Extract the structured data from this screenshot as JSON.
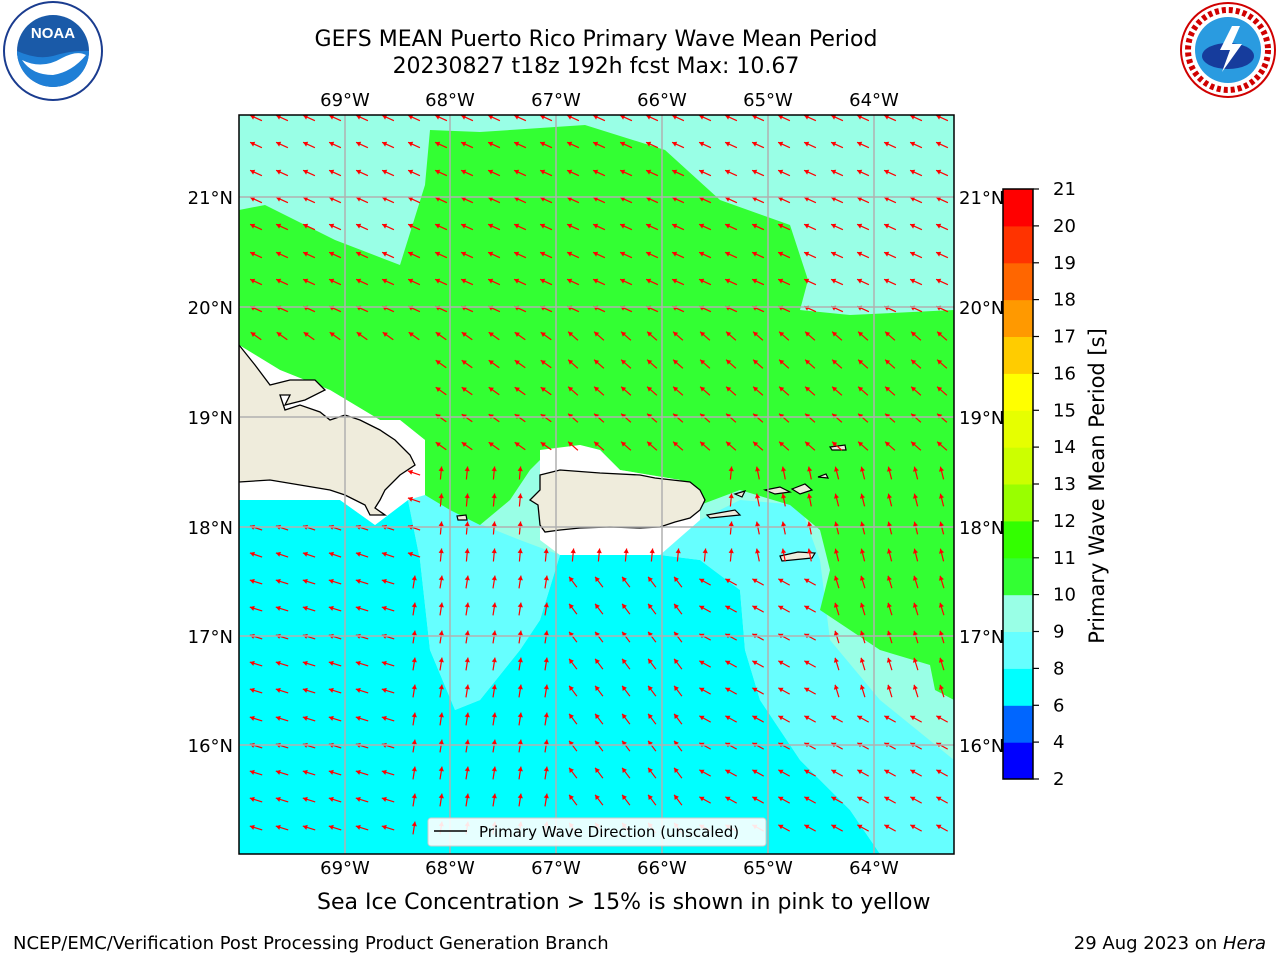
{
  "header": {
    "title_line1": "GEFS MEAN Puerto Rico Primary Wave Mean Period",
    "title_line2": "20230827 t18z 192h fcst   Max: 10.67"
  },
  "logos": {
    "left": {
      "icon": "noaa-logo",
      "text": "NOAA"
    },
    "right": {
      "icon": "nws-logo",
      "text": "NATIONAL WEATHER SERVICE"
    }
  },
  "map": {
    "lon_labels": [
      "69°W",
      "68°W",
      "67°W",
      "66°W",
      "65°W",
      "64°W"
    ],
    "lat_labels": [
      "21°N",
      "20°N",
      "19°N",
      "18°N",
      "17°N",
      "16°N"
    ],
    "legend_label": "Primary Wave Direction (unscaled)",
    "colors": {
      "land": "#efecdc",
      "c6_8": "#00ffff",
      "c8_9": "#66ffff",
      "c9_10": "#99ffe6",
      "c10_11": "#33ff33",
      "arrow": "#ff0000"
    }
  },
  "colorbar": {
    "label": "Primary Wave Mean Period [s]",
    "ticks": [
      "2",
      "4",
      "6",
      "8",
      "9",
      "10",
      "11",
      "12",
      "13",
      "14",
      "15",
      "16",
      "17",
      "18",
      "19",
      "20",
      "21"
    ],
    "colors": [
      "#0000ff",
      "#0066ff",
      "#00ffff",
      "#66ffff",
      "#99ffe6",
      "#33ff33",
      "#33ff00",
      "#99ff00",
      "#ccff00",
      "#e6ff00",
      "#ffff00",
      "#ffcc00",
      "#ff9900",
      "#ff6600",
      "#ff3300",
      "#ff0000"
    ]
  },
  "notes": {
    "ice": "Sea Ice Concentration > 15% is shown in pink to yellow"
  },
  "footer": {
    "left": "NCEP/EMC/Verification Post Processing Product Generation Branch",
    "right_prefix": "29 Aug 2023 on ",
    "right_machine": "Hera"
  }
}
